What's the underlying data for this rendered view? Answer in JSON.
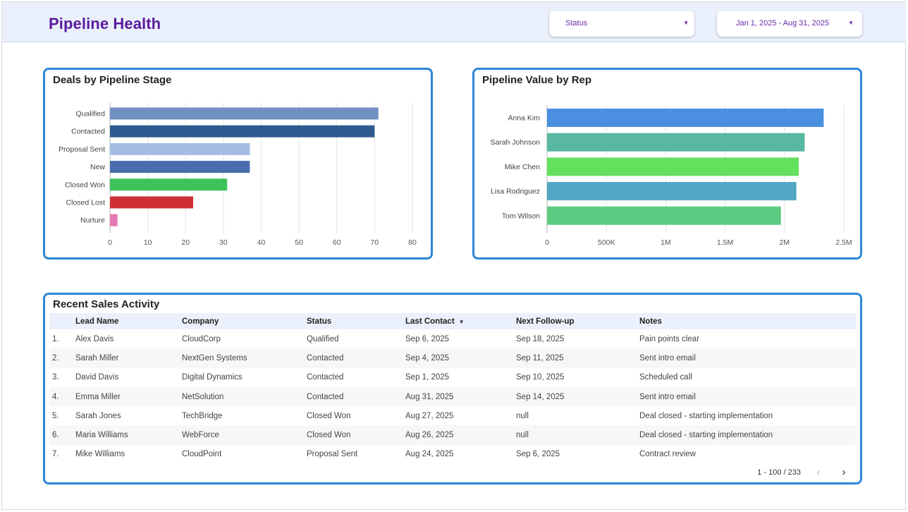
{
  "header": {
    "title": "Pipeline Health",
    "status_filter": "Status",
    "date_range": "Jan 1, 2025 - Aug 31, 2025"
  },
  "charts": {
    "stage": {
      "title": "Deals by Pipeline Stage"
    },
    "rep": {
      "title": "Pipeline Value by Rep"
    }
  },
  "chart_data": [
    {
      "type": "bar",
      "orientation": "horizontal",
      "title": "Deals by Pipeline Stage",
      "categories": [
        "Qualified",
        "Contacted",
        "Proposal Sent",
        "New",
        "Closed Won",
        "Closed Lost",
        "Nurture"
      ],
      "values": [
        71,
        70,
        37,
        37,
        31,
        22,
        2
      ],
      "colors": [
        "#7090c2",
        "#2e5b8f",
        "#a6bde3",
        "#4a6ead",
        "#3ec25b",
        "#cf3035",
        "#e57bb4"
      ],
      "xlim": [
        0,
        80
      ],
      "xticks": [
        "0",
        "10",
        "20",
        "30",
        "40",
        "50",
        "60",
        "70",
        "80"
      ],
      "grid": true
    },
    {
      "type": "bar",
      "orientation": "horizontal",
      "title": "Pipeline Value by Rep",
      "categories": [
        "Anna Kim",
        "Sarah Johnson",
        "Mike Chen",
        "Lisa Rodriguez",
        "Tom Wilson"
      ],
      "values": [
        2330000,
        2170000,
        2120000,
        2100000,
        1970000
      ],
      "colors": [
        "#4a8fe0",
        "#58b8a0",
        "#63e05e",
        "#52a6c4",
        "#5dcc82"
      ],
      "xlim": [
        0,
        2500000
      ],
      "xticks": [
        "0",
        "500K",
        "1M",
        "1.5M",
        "2M",
        "2.5M"
      ],
      "grid": true
    }
  ],
  "activity": {
    "title": "Recent Sales Activity",
    "columns": [
      "",
      "Lead Name",
      "Company",
      "Status",
      "Last Contact",
      "Next Follow-up",
      "Notes"
    ],
    "rows": [
      [
        "1.",
        "Alex Davis",
        "CloudCorp",
        "Qualified",
        "Sep 6, 2025",
        "Sep 18, 2025",
        "Pain points clear"
      ],
      [
        "2.",
        "Sarah Miller",
        "NextGen Systems",
        "Contacted",
        "Sep 4, 2025",
        "Sep 11, 2025",
        "Sent intro email"
      ],
      [
        "3.",
        "David Davis",
        "Digital Dynamics",
        "Contacted",
        "Sep 1, 2025",
        "Sep 10, 2025",
        "Scheduled call"
      ],
      [
        "4.",
        "Emma Miller",
        "NetSolution",
        "Contacted",
        "Aug 31, 2025",
        "Sep 14, 2025",
        "Sent intro email"
      ],
      [
        "5.",
        "Sarah Jones",
        "TechBridge",
        "Closed Won",
        "Aug 27, 2025",
        "null",
        "Deal closed - starting implementation"
      ],
      [
        "6.",
        "Maria Williams",
        "WebForce",
        "Closed Won",
        "Aug 26, 2025",
        "null",
        "Deal closed - starting implementation"
      ],
      [
        "7.",
        "Mike Williams",
        "CloudPoint",
        "Proposal Sent",
        "Aug 24, 2025",
        "Sep 6, 2025",
        "Contract review"
      ]
    ],
    "pagination": "1 - 100 / 233"
  },
  "icons": {
    "dropdown": "caret-down-icon",
    "sort": "sort-desc-icon",
    "prev": "chevron-left-icon",
    "next": "chevron-right-icon"
  }
}
